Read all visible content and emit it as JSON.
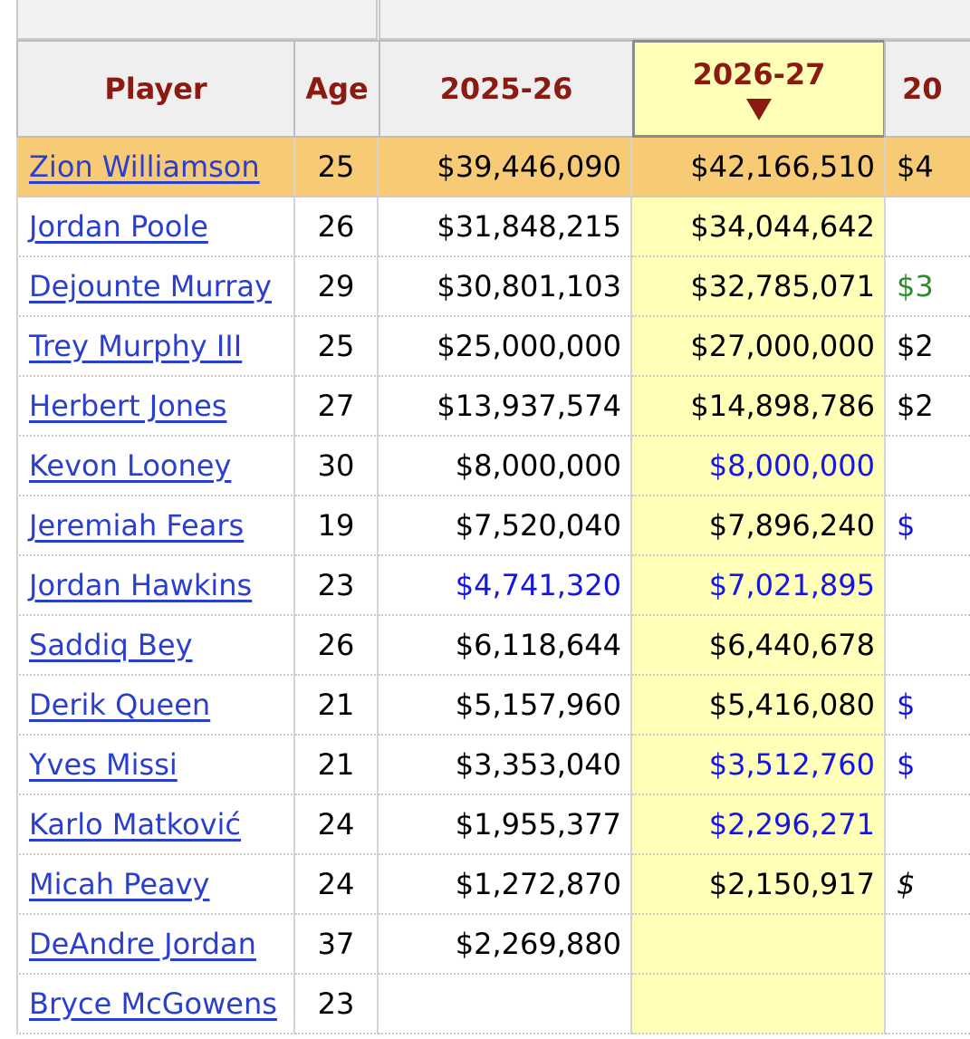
{
  "colors": {
    "header_text": "#8b1a11",
    "highlight_row": "#f7ca76",
    "sorted_column": "#ffffb8",
    "link": "#2a3fcf",
    "option_blue": "#1515e6",
    "player_option_green": "#2e8b2e"
  },
  "table": {
    "headers": {
      "player": "Player",
      "age": "Age",
      "y1": "2025-26",
      "y2": "2026-27",
      "y3": "20"
    },
    "sorted_icon": "sort-down-arrow-icon",
    "rows": [
      {
        "player": "Zion Williamson",
        "age": "25",
        "y1": "$39,446,090",
        "y1c": "black",
        "y2": "$42,166,510",
        "y2c": "black",
        "y3": "$4",
        "y3c": "black",
        "highlight": true
      },
      {
        "player": "Jordan Poole",
        "age": "26",
        "y1": "$31,848,215",
        "y1c": "black",
        "y2": "$34,044,642",
        "y2c": "black",
        "y3": "",
        "y3c": "black"
      },
      {
        "player": "Dejounte Murray",
        "age": "29",
        "y1": "$30,801,103",
        "y1c": "black",
        "y2": "$32,785,071",
        "y2c": "black",
        "y3": "$3",
        "y3c": "green"
      },
      {
        "player": "Trey Murphy III",
        "age": "25",
        "y1": "$25,000,000",
        "y1c": "black",
        "y2": "$27,000,000",
        "y2c": "black",
        "y3": "$2",
        "y3c": "black"
      },
      {
        "player": "Herbert Jones",
        "age": "27",
        "y1": "$13,937,574",
        "y1c": "black",
        "y2": "$14,898,786",
        "y2c": "black",
        "y3": "$2",
        "y3c": "black"
      },
      {
        "player": "Kevon Looney",
        "age": "30",
        "y1": "$8,000,000",
        "y1c": "black",
        "y2": "$8,000,000",
        "y2c": "blue",
        "y3": "",
        "y3c": "black"
      },
      {
        "player": "Jeremiah Fears",
        "age": "19",
        "y1": "$7,520,040",
        "y1c": "black",
        "y2": "$7,896,240",
        "y2c": "black",
        "y3": "$",
        "y3c": "blue"
      },
      {
        "player": "Jordan Hawkins",
        "age": "23",
        "y1": "$4,741,320",
        "y1c": "blue",
        "y2": "$7,021,895",
        "y2c": "blue",
        "y3": "",
        "y3c": "black"
      },
      {
        "player": "Saddiq Bey",
        "age": "26",
        "y1": "$6,118,644",
        "y1c": "black",
        "y2": "$6,440,678",
        "y2c": "black",
        "y3": "",
        "y3c": "black"
      },
      {
        "player": "Derik Queen",
        "age": "21",
        "y1": "$5,157,960",
        "y1c": "black",
        "y2": "$5,416,080",
        "y2c": "black",
        "y3": "$",
        "y3c": "blue"
      },
      {
        "player": "Yves Missi",
        "age": "21",
        "y1": "$3,353,040",
        "y1c": "black",
        "y2": "$3,512,760",
        "y2c": "blue",
        "y3": "$",
        "y3c": "blue"
      },
      {
        "player": "Karlo Matković",
        "age": "24",
        "y1": "$1,955,377",
        "y1c": "black",
        "y2": "$2,296,271",
        "y2c": "blue",
        "y3": "",
        "y3c": "black"
      },
      {
        "player": "Micah Peavy",
        "age": "24",
        "y1": "$1,272,870",
        "y1c": "black",
        "y2": "$2,150,917",
        "y2c": "black",
        "y3": "$",
        "y3c": "italic"
      },
      {
        "player": "DeAndre Jordan",
        "age": "37",
        "y1": "$2,269,880",
        "y1c": "black",
        "y2": "",
        "y2c": "black",
        "y3": "",
        "y3c": "black"
      },
      {
        "player": "Bryce McGowens",
        "age": "23",
        "y1": "",
        "y1c": "black",
        "y2": "",
        "y2c": "black",
        "y3": "",
        "y3c": "black"
      }
    ]
  }
}
